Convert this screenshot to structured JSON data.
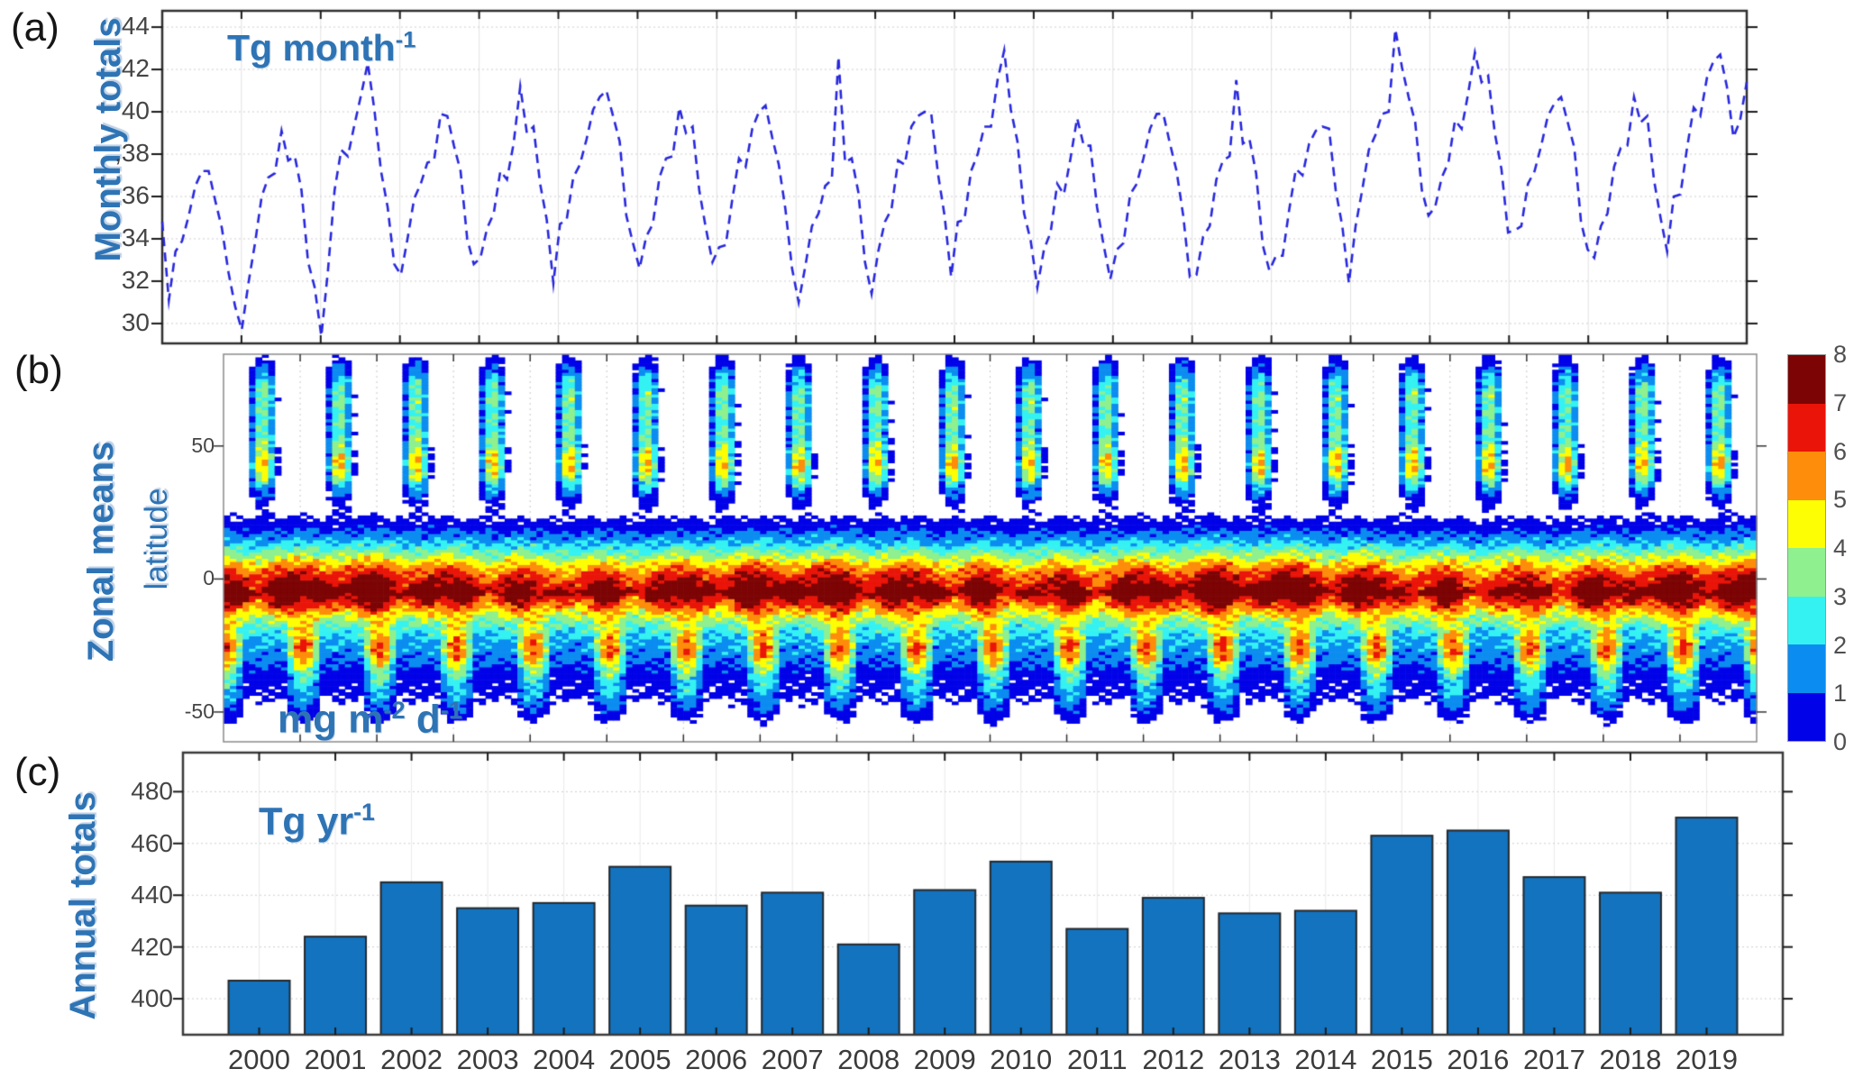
{
  "figure": {
    "panel_a": {
      "letter": "(a)",
      "side_label": "Monthly totals",
      "unit": {
        "base": "Tg month",
        "sup": "-1"
      },
      "y_tick_labels": [
        "44",
        "42",
        "40",
        ",38",
        "36",
        "34",
        "32",
        "30"
      ],
      "y_tick_values": [
        44,
        42,
        40,
        38,
        36,
        34,
        32,
        30
      ]
    },
    "panel_b": {
      "letter": "(b)",
      "side_label": "Zonal means",
      "axis_label": "latitude",
      "unit": {
        "base1": "mg m",
        "sup1": "-2",
        "base2": " d",
        "sup2": "-1"
      },
      "y_tick_labels": [
        "50",
        "0",
        "-50"
      ],
      "y_tick_values": [
        50,
        0,
        -50
      ],
      "colorbar_tick_labels": [
        "8",
        "7",
        "6",
        "5",
        "4",
        "3",
        "2",
        "1",
        "0"
      ]
    },
    "panel_c": {
      "letter": "(c)",
      "side_label": "Annual totals",
      "unit": {
        "base": "Tg yr",
        "sup": "-1"
      },
      "y_tick_labels": [
        "480",
        "460",
        "440",
        "420",
        "400"
      ],
      "y_tick_values": [
        480,
        460,
        440,
        420,
        400
      ]
    }
  },
  "colors": {
    "label_blue": "#2E74B5",
    "line_blue": "#2727DE",
    "bar_fill": "#1373BE",
    "bar_edge": "#23282D",
    "border_a": "#2E2E2E",
    "border_b": "#8A8A8A",
    "border_c": "#3A3A3A",
    "grid_solid": "#E2E2E2",
    "grid_dotted": "#CFCFCF",
    "grid_dashed_b": "#C9C9C9",
    "tick_mark": "#1A1A1A",
    "palette_0_to_8": [
      "#0202E8",
      "#0B8CF0",
      "#35F2F2",
      "#8EF08E",
      "#FDFD04",
      "#FD8D0A",
      "#EA1408",
      "#7C0404"
    ]
  },
  "chart_data": [
    {
      "type": "line",
      "title": "Monthly totals",
      "ylabel": "Tg month^-1",
      "x_range_years": [
        2000,
        2020
      ],
      "x_step": "month",
      "ylim": [
        29.0,
        44.8
      ],
      "yticks": [
        30,
        32,
        34,
        36,
        38,
        40,
        42,
        44
      ],
      "line_style": "dashed",
      "line_color": "#2727DE",
      "grid": true,
      "values": [
        34.8,
        31.1,
        33.4,
        33.9,
        35.1,
        36.5,
        37.2,
        37.2,
        35.8,
        34.5,
        32.4,
        30.8,
        29.7,
        31.9,
        33.8,
        36.0,
        36.9,
        37.1,
        39.1,
        37.7,
        37.9,
        36.3,
        32.9,
        31.7,
        29.4,
        32.5,
        36.3,
        38.2,
        37.9,
        39.4,
        40.8,
        42.3,
        40.1,
        37.2,
        35.5,
        32.8,
        32.3,
        34.0,
        35.9,
        36.6,
        37.6,
        37.7,
        39.9,
        39.8,
        38.4,
        37.2,
        34.0,
        32.8,
        33.1,
        34.5,
        35.2,
        37.2,
        36.8,
        38.5,
        41.2,
        39.0,
        39.3,
        36.6,
        34.9,
        31.9,
        34.7,
        34.9,
        36.9,
        37.5,
        38.7,
        40.1,
        40.7,
        41.0,
        39.8,
        38.6,
        35.1,
        33.8,
        32.6,
        34.1,
        34.7,
        36.9,
        37.8,
        37.9,
        40.2,
        39.0,
        39.3,
        36.3,
        34.5,
        32.9,
        33.6,
        33.7,
        35.9,
        37.8,
        37.4,
        39.2,
        40.0,
        40.3,
        38.8,
        37.5,
        35.4,
        32.6,
        31.0,
        32.7,
        34.6,
        35.2,
        36.5,
        36.8,
        42.6,
        37.6,
        37.8,
        36.2,
        32.9,
        31.4,
        33.4,
        34.8,
        35.4,
        37.7,
        37.5,
        39.3,
        39.8,
        40.0,
        39.9,
        37.1,
        35.1,
        32.2,
        34.8,
        34.9,
        37.2,
        38.0,
        39.3,
        39.3,
        41.5,
        42.9,
        40.1,
        38.6,
        35.2,
        33.9,
        31.7,
        33.5,
        34.3,
        36.6,
        36.1,
        37.8,
        39.7,
        38.4,
        38.4,
        35.5,
        33.7,
        32.1,
        33.5,
        33.8,
        36.1,
        36.6,
        37.8,
        39.2,
        39.9,
        39.9,
        38.5,
        37.2,
        35.1,
        32.2,
        32.3,
        34.1,
        34.6,
        36.8,
        37.7,
        37.9,
        41.5,
        38.5,
        38.7,
        37.1,
        33.7,
        32.5,
        33.2,
        33.2,
        35.4,
        37.3,
        37.0,
        38.5,
        39.1,
        39.3,
        39.2,
        36.3,
        34.6,
        31.9,
        34.6,
        36.3,
        38.2,
        38.9,
        39.9,
        40.0,
        43.9,
        42.1,
        40.7,
        39.5,
        36.3,
        35.1,
        35.5,
        36.9,
        37.6,
        39.6,
        39.2,
        40.9,
        42.8,
        41.4,
        41.7,
        39.0,
        37.3,
        34.3,
        34.4,
        34.6,
        36.6,
        37.2,
        38.4,
        39.8,
        40.4,
        40.7,
        39.5,
        38.3,
        34.8,
        33.5,
        33.1,
        34.6,
        35.2,
        37.4,
        38.3,
        38.4,
        40.7,
        39.5,
        39.8,
        36.8,
        35.0,
        33.4,
        36.0,
        36.1,
        38.3,
        40.2,
        39.8,
        41.6,
        42.4,
        42.7,
        41.2,
        38.8,
        39.6,
        41.4
      ]
    },
    {
      "type": "heatmap",
      "title": "Zonal means",
      "ylabel": "latitude",
      "units": "mg m^-2 d^-1",
      "x_range_years": [
        2000,
        2020
      ],
      "lat_range": [
        -61,
        84
      ],
      "yticks": [
        50,
        0,
        -50
      ],
      "levels": [
        0,
        1,
        2,
        3,
        4,
        5,
        6,
        7,
        8
      ],
      "palette": [
        "#0202E8",
        "#0B8CF0",
        "#35F2F2",
        "#8EF08E",
        "#FDFD04",
        "#FD8D0A",
        "#EA1408",
        "#7C0404"
      ],
      "colorbar_position": "right",
      "model": {
        "tropical": {
          "amp": 6.8,
          "lat0": -3,
          "width": 15,
          "season": 0.1,
          "phase": 8,
          "interannual": 0.06
        },
        "core": {
          "amp": 1.4,
          "lat0": -7,
          "width": 6,
          "period": 7.3
        },
        "stripe": {
          "amp": 0.8,
          "lat0": -5,
          "width": 1.5
        },
        "nh": {
          "amp": 4.6,
          "lat0": 42,
          "width": 9,
          "rise": 3.2,
          "power": 2.5
        },
        "nh2": {
          "amp": 3.0,
          "lat0": 60,
          "width": 15
        },
        "nh3": {
          "amp": 1.6,
          "lat0": 72,
          "width": 8
        },
        "sh": {
          "amp": 5.6,
          "lat0": -27,
          "width": 9,
          "peak_month": 0.5,
          "base": 0.18,
          "power": 1.3
        },
        "sh2": {
          "amp": 2.0,
          "lat0": -42,
          "width": 9
        },
        "noise": [
          [
            0.45,
            1.7,
            2.3
          ],
          [
            0.35,
            0.9,
            1.1
          ]
        ],
        "white_below": 0.35
      }
    },
    {
      "type": "bar",
      "title": "Annual totals",
      "units": "Tg yr^-1",
      "categories": [
        "2000",
        "2001",
        "2002",
        "2003",
        "2004",
        "2005",
        "2006",
        "2007",
        "2008",
        "2009",
        "2010",
        "2011",
        "2012",
        "2013",
        "2014",
        "2015",
        "2016",
        "2017",
        "2018",
        "2019"
      ],
      "values": [
        407,
        424,
        445,
        435,
        437,
        451,
        436,
        441,
        421,
        442,
        453,
        427,
        439,
        433,
        434,
        463,
        465,
        447,
        441,
        470
      ],
      "ylim": [
        386,
        495
      ],
      "yticks": [
        400,
        420,
        440,
        460,
        480
      ],
      "bar_color": "#1373BE",
      "grid": true
    }
  ]
}
